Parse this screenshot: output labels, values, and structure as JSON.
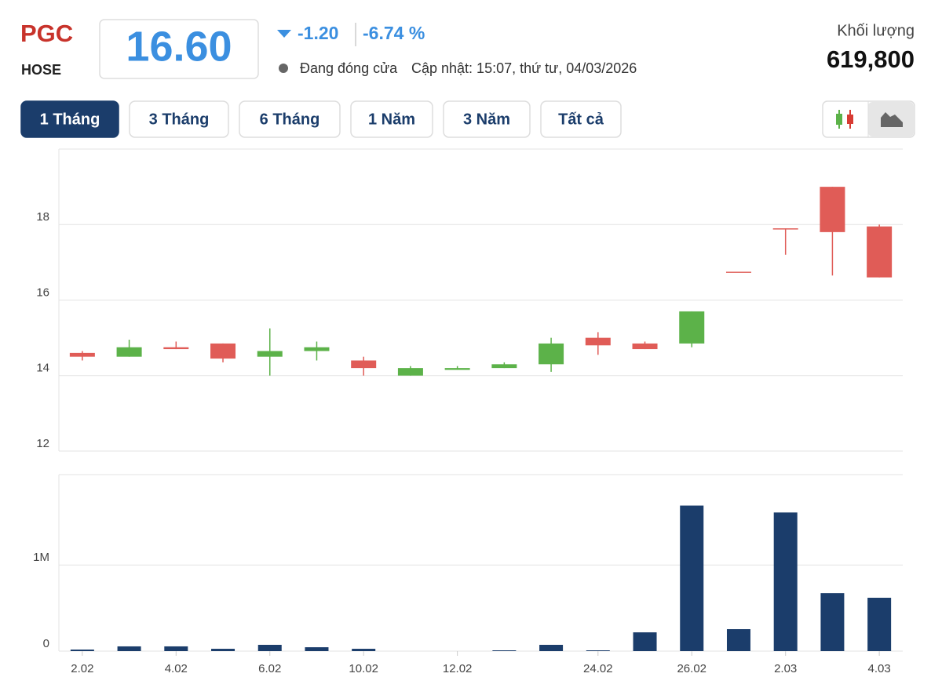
{
  "header": {
    "symbol": "PGC",
    "exchange": "HOSE",
    "price": "16.60",
    "change": "-1.20",
    "change_percent": "-6.74 %",
    "status": "Đang đóng cửa",
    "updated": "Cập nhật: 15:07, thứ tư, 04/03/2026",
    "volume_label": "Khối lượng",
    "volume": "619,800"
  },
  "range_buttons": {
    "items": [
      "1 Tháng",
      "3 Tháng",
      "6 Tháng",
      "1 Năm",
      "3 Năm",
      "Tất cả"
    ],
    "active": 0
  },
  "chart_data": {
    "type": "candlestick",
    "categories": [
      "2.02",
      null,
      "4.02",
      null,
      "6.02",
      null,
      "10.02",
      null,
      "12.02",
      null,
      null,
      "24.02",
      null,
      "26.02",
      null,
      "2.03",
      null,
      "4.03"
    ],
    "open": [
      14.6,
      14.5,
      14.75,
      14.85,
      14.5,
      14.65,
      14.4,
      14.0,
      14.15,
      14.2,
      14.3,
      15.0,
      14.85,
      14.85,
      16.75,
      17.9,
      19.0,
      17.95
    ],
    "high": [
      14.65,
      14.95,
      14.9,
      14.85,
      15.25,
      14.9,
      14.5,
      14.25,
      14.25,
      14.35,
      15.0,
      15.15,
      14.9,
      15.7,
      16.75,
      17.9,
      19.0,
      18.0
    ],
    "low": [
      14.4,
      14.5,
      14.7,
      14.35,
      14.0,
      14.4,
      14.0,
      14.0,
      14.15,
      14.2,
      14.1,
      14.55,
      14.7,
      14.75,
      16.75,
      17.2,
      16.65,
      16.6
    ],
    "close": [
      14.5,
      14.75,
      14.7,
      14.45,
      14.65,
      14.75,
      14.2,
      14.2,
      14.2,
      14.3,
      14.85,
      14.8,
      14.7,
      15.7,
      16.75,
      17.9,
      17.8,
      16.6
    ],
    "up_color": "#5cb249",
    "down_color": "#e05c57",
    "ylim": [
      12,
      20
    ],
    "yticks": [
      12,
      14,
      16,
      18
    ],
    "grid": true,
    "volume": {
      "type": "bar",
      "color": "#1b3d6b",
      "values": [
        18000,
        55000,
        55000,
        27000,
        73000,
        45000,
        27000,
        0,
        0,
        9000,
        73000,
        9000,
        218000,
        1690000,
        255000,
        1610000,
        673000,
        619800
      ],
      "ylim": [
        0,
        2050000
      ],
      "yticks": [
        0,
        {
          "value": 1000000,
          "label": "1M"
        }
      ]
    }
  }
}
